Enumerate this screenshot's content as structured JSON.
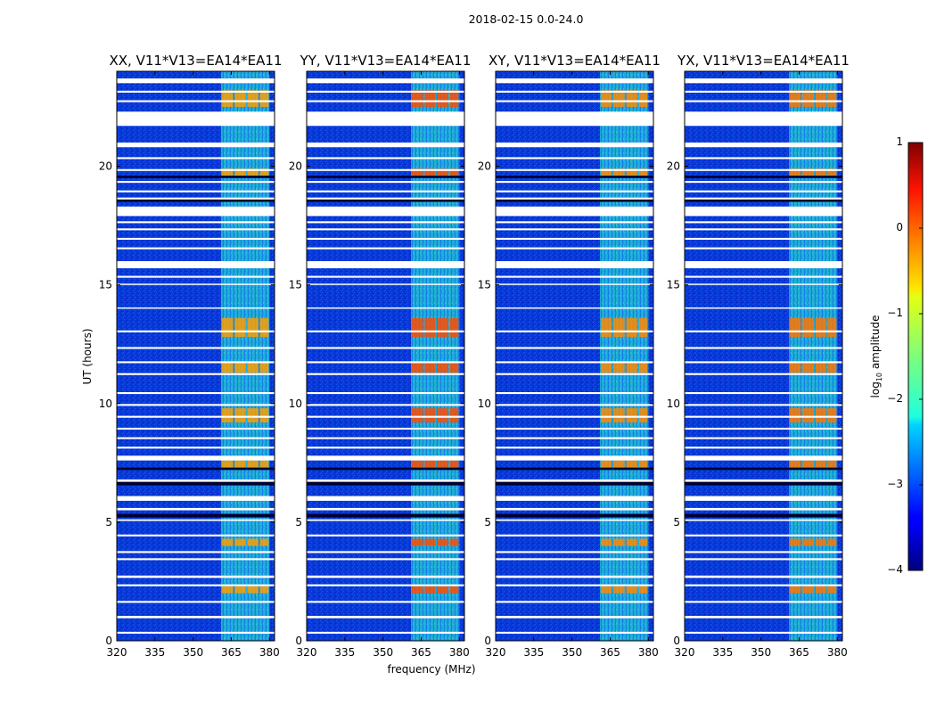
{
  "chart_data": {
    "type": "heatmap",
    "title": "2018-02-15 0.0-24.0",
    "xlabel": "frequency (MHz)",
    "ylabel": "UT (hours)",
    "xlim": [
      320,
      382
    ],
    "ylim": [
      0,
      24
    ],
    "xticks": [
      "320",
      "335",
      "350",
      "365",
      "380"
    ],
    "yticks": [
      "0",
      "5",
      "10",
      "15",
      "20"
    ],
    "panels": [
      {
        "title": "XX, V11*V13=EA14*EA11",
        "bright_level": 0.72
      },
      {
        "title": "YY, V11*V13=EA14*EA11",
        "bright_level": 0.8
      },
      {
        "title": "XY, V11*V13=EA14*EA11",
        "bright_level": 0.74
      },
      {
        "title": "YX, V11*V13=EA14*EA11",
        "bright_level": 0.76
      }
    ],
    "colorbar": {
      "label": "log10 amplitude",
      "label_base": "log",
      "label_sub": "10",
      "label_rest": " amplitude",
      "range": [
        -4,
        1
      ],
      "ticks": [
        "1",
        "0",
        "−1",
        "−2",
        "−3",
        "−4"
      ],
      "colormap": "jet"
    },
    "active_band_mhz": [
      361,
      380
    ],
    "channel_blocks_mhz": [
      [
        361,
        366
      ],
      [
        366,
        371
      ],
      [
        371,
        376
      ],
      [
        376,
        380
      ]
    ],
    "flagged_hours": [
      [
        0.3,
        0.38
      ],
      [
        0.95,
        1.05
      ],
      [
        1.6,
        1.68
      ],
      [
        2.3,
        2.38
      ],
      [
        2.65,
        2.75
      ],
      [
        3.4,
        3.48
      ],
      [
        3.7,
        3.78
      ],
      [
        4.4,
        4.48
      ],
      [
        5.05,
        5.12
      ],
      [
        5.5,
        5.6
      ],
      [
        5.9,
        6.1
      ],
      [
        6.7,
        6.8
      ],
      [
        7.6,
        7.8
      ],
      [
        8.1,
        8.18
      ],
      [
        8.5,
        8.58
      ],
      [
        8.9,
        8.98
      ],
      [
        9.4,
        9.48
      ],
      [
        9.9,
        9.98
      ],
      [
        10.4,
        10.48
      ],
      [
        11.2,
        11.28
      ],
      [
        11.7,
        11.78
      ],
      [
        12.3,
        12.38
      ],
      [
        13.0,
        13.08
      ],
      [
        14.0,
        14.05
      ],
      [
        15.0,
        15.05
      ],
      [
        15.3,
        15.38
      ],
      [
        15.7,
        16.0
      ],
      [
        16.5,
        16.58
      ],
      [
        16.9,
        16.98
      ],
      [
        17.3,
        17.38
      ],
      [
        17.6,
        17.68
      ],
      [
        17.9,
        18.3
      ],
      [
        18.6,
        18.68
      ],
      [
        18.9,
        18.98
      ],
      [
        19.3,
        19.38
      ],
      [
        19.8,
        19.88
      ],
      [
        20.3,
        20.38
      ],
      [
        20.8,
        21.0
      ],
      [
        21.7,
        22.3
      ],
      [
        22.7,
        22.78
      ],
      [
        23.1,
        23.18
      ],
      [
        23.5,
        23.7
      ]
    ],
    "dark_hours": [
      [
        5.2,
        5.35
      ],
      [
        6.55,
        6.7
      ],
      [
        7.2,
        7.3
      ],
      [
        18.5,
        18.6
      ],
      [
        19.5,
        19.6
      ]
    ],
    "bright_hours": [
      [
        2.0,
        2.3
      ],
      [
        4.0,
        4.3
      ],
      [
        7.3,
        7.6
      ],
      [
        9.2,
        9.8
      ],
      [
        11.3,
        11.7
      ],
      [
        12.8,
        13.6
      ],
      [
        19.6,
        19.9
      ],
      [
        22.5,
        23.2
      ]
    ]
  }
}
